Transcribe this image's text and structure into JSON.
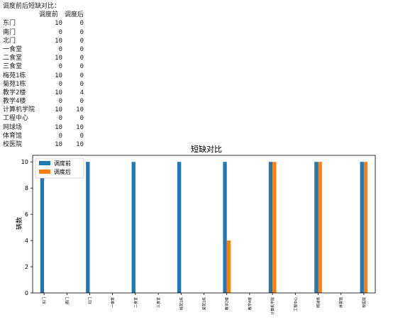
{
  "console": {
    "title": "调度前后短缺对比：",
    "columns": [
      "调度前",
      "调度后"
    ],
    "rows": [
      {
        "name": "东门",
        "before": "10",
        "after": "0"
      },
      {
        "name": "南门",
        "before": "0",
        "after": "0"
      },
      {
        "name": "北门",
        "before": "10",
        "after": "0"
      },
      {
        "name": "一食堂",
        "before": "0",
        "after": "0"
      },
      {
        "name": "二食堂",
        "before": "10",
        "after": "0"
      },
      {
        "name": "三食堂",
        "before": "0",
        "after": "0"
      },
      {
        "name": "梅苑1栋",
        "before": "10",
        "after": "0"
      },
      {
        "name": "菊苑1栋",
        "before": "0",
        "after": "0"
      },
      {
        "name": "教学2楼",
        "before": "10",
        "after": "4"
      },
      {
        "name": "教学4楼",
        "before": "0",
        "after": "0"
      },
      {
        "name": "计算机学院",
        "before": "10",
        "after": "10"
      },
      {
        "name": "工程中心",
        "before": "0",
        "after": "0"
      },
      {
        "name": "网球场",
        "before": "10",
        "after": "10"
      },
      {
        "name": "体育馆",
        "before": "0",
        "after": "0"
      },
      {
        "name": "校医院",
        "before": "10",
        "after": "10"
      }
    ]
  },
  "chart_data": {
    "type": "bar",
    "title": "短缺对比",
    "xlabel": "",
    "ylabel": "辆数",
    "ylim": [
      0,
      10.5
    ],
    "yticks": [
      0,
      2,
      4,
      6,
      8,
      10
    ],
    "legend_position": "top-left",
    "categories": [
      "东门",
      "南门",
      "北门",
      "一食堂",
      "二食堂",
      "三食堂",
      "梅苑1栋",
      "菊苑1栋",
      "教学2楼",
      "教学4楼",
      "计算机学院",
      "工程中心",
      "网球场",
      "体育馆",
      "校医院"
    ],
    "series": [
      {
        "name": "调度前",
        "color": "#1f77b4",
        "values": [
          10,
          0,
          10,
          0,
          10,
          0,
          10,
          0,
          10,
          0,
          10,
          0,
          10,
          0,
          10
        ]
      },
      {
        "name": "调度后",
        "color": "#ff7f0e",
        "values": [
          0,
          0,
          0,
          0,
          0,
          0,
          0,
          0,
          4,
          0,
          10,
          0,
          10,
          0,
          10
        ]
      }
    ]
  }
}
